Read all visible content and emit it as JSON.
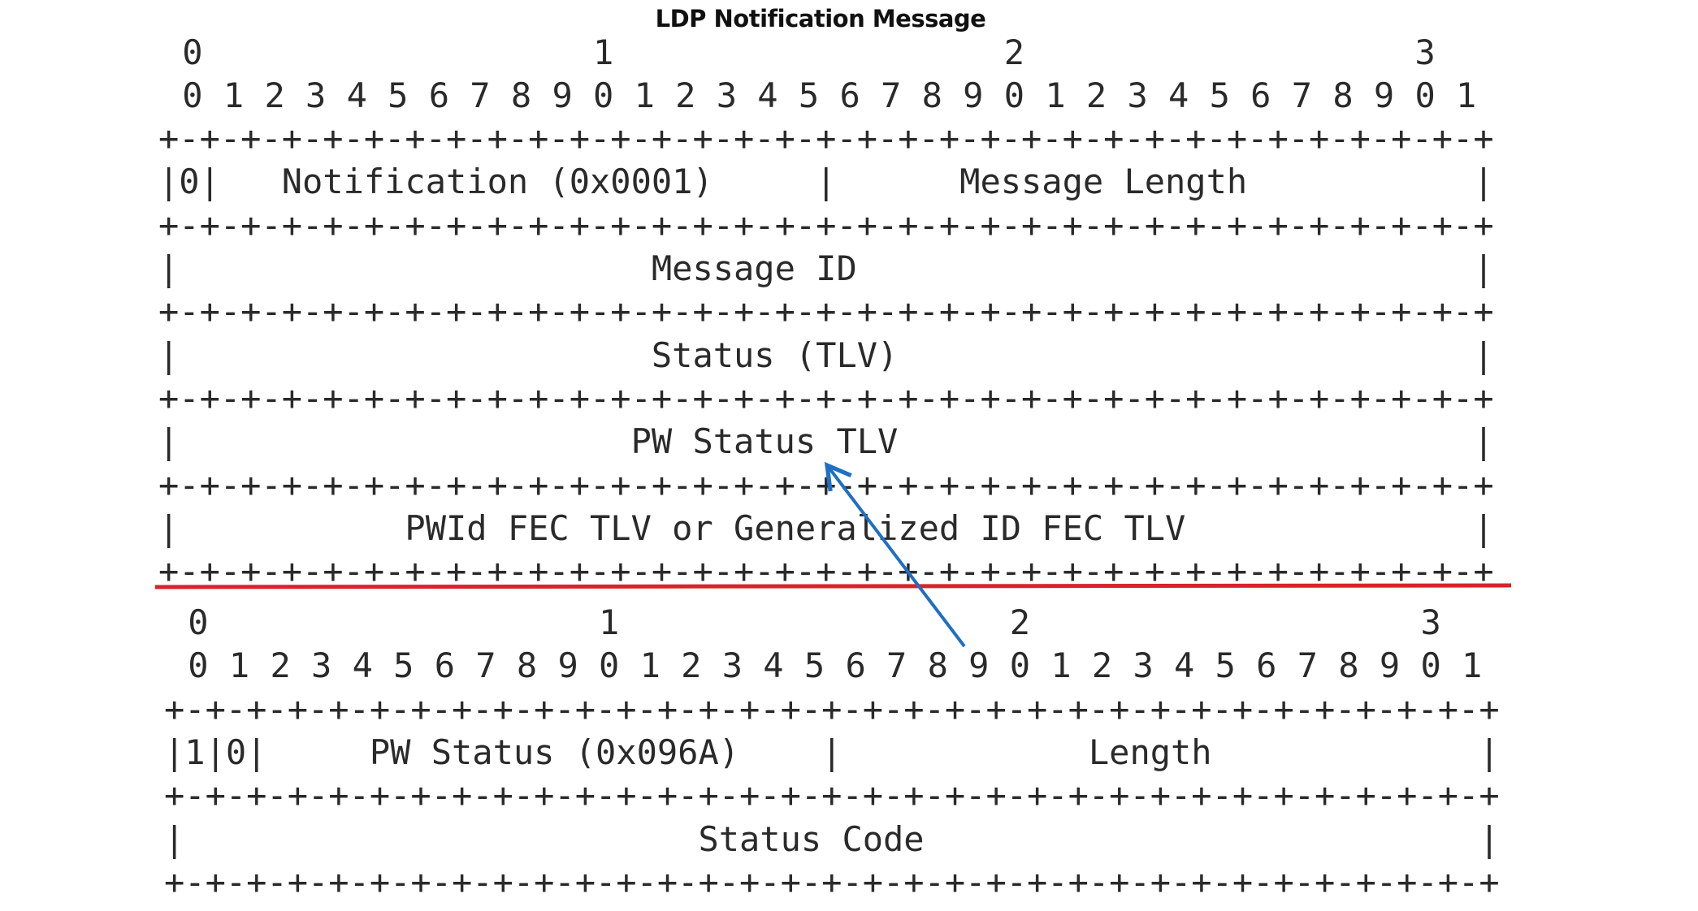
{
  "title": "LDP Notification Message",
  "diagrams": [
    {
      "ruler_tens": "0                   1                   2                   3",
      "ruler_units": "0 1 2 3 4 5 6 7 8 9 0 1 2 3 4 5 6 7 8 9 0 1 2 3 4 5 6 7 8 9 0 1",
      "border": "+-+-+-+-+-+-+-+-+-+-+-+-+-+-+-+-+-+-+-+-+-+-+-+-+-+-+-+-+-+-+-+-+",
      "rows": [
        "|0|   Notification (0x0001)     |      Message Length           |",
        "|                       Message ID                              |",
        "|                       Status (TLV)                            |",
        "|                      PW Status TLV                            |",
        "|           PWId FEC TLV or Generalized ID FEC TLV              |"
      ]
    },
    {
      "ruler_tens": "0                   1                   2                   3",
      "ruler_units": "0 1 2 3 4 5 6 7 8 9 0 1 2 3 4 5 6 7 8 9 0 1 2 3 4 5 6 7 8 9 0 1",
      "border": "+-+-+-+-+-+-+-+-+-+-+-+-+-+-+-+-+-+-+-+-+-+-+-+-+-+-+-+-+-+-+-+-+",
      "rows": [
        "|1|0|     PW Status (0x096A)    |            Length             |",
        "|                         Status Code                           |"
      ]
    }
  ]
}
